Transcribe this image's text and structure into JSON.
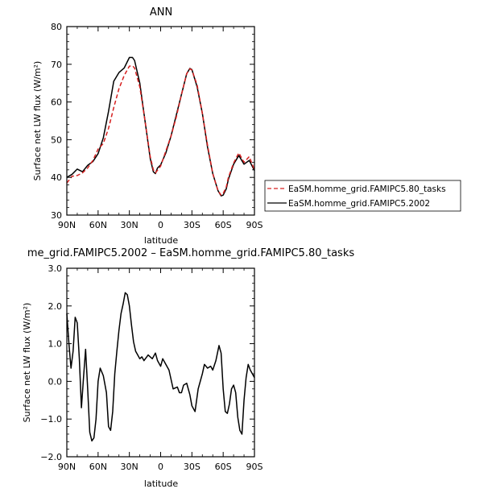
{
  "chart_data": [
    {
      "type": "line",
      "title": "ANN",
      "xlabel": "latitude",
      "ylabel": "Surface net LW flux (W/m²)",
      "ylim": [
        30,
        80
      ],
      "yticks": [
        "30",
        "40",
        "50",
        "60",
        "70",
        "80"
      ],
      "xticks": [
        "90N",
        "60N",
        "30N",
        "0",
        "30S",
        "60S",
        "90S"
      ],
      "xlim": [
        90,
        -90
      ],
      "grid": false,
      "legend_placement": "right",
      "x": [
        90,
        85,
        80,
        75,
        70,
        65,
        60,
        55,
        50,
        45,
        40,
        35,
        30,
        27,
        25,
        20,
        15,
        10,
        7,
        5,
        3,
        0,
        -5,
        -10,
        -15,
        -20,
        -25,
        -28,
        -30,
        -35,
        -40,
        -45,
        -50,
        -55,
        -58,
        -60,
        -63,
        -65,
        -70,
        -75,
        -80,
        -85,
        -90
      ],
      "series": [
        {
          "name": "EaSM.homme_grid.FAMIPC5.80_tasks",
          "color": "#d62020",
          "dash": "dashed",
          "values": [
            38.5,
            40.3,
            40.5,
            41.2,
            42.5,
            44.5,
            47.5,
            49.0,
            53.0,
            58.5,
            63.5,
            67.0,
            69.5,
            69.6,
            69.0,
            64.0,
            55.0,
            45.5,
            42.0,
            41.2,
            41.9,
            43.0,
            47.0,
            51.0,
            56.0,
            62.0,
            67.5,
            68.8,
            68.5,
            64.5,
            57.0,
            48.5,
            41.0,
            36.5,
            35.3,
            35.7,
            37.5,
            40.0,
            43.8,
            46.5,
            44.0,
            45.5,
            42.0
          ]
        },
        {
          "name": "EaSM.homme_grid.FAMIPC5.2002",
          "color": "#000000",
          "dash": "solid",
          "values": [
            40.0,
            40.8,
            42.2,
            41.5,
            43.2,
            44.2,
            46.3,
            50.5,
            57.5,
            65.5,
            67.8,
            69.0,
            71.8,
            71.8,
            71.0,
            65.0,
            55.0,
            45.0,
            41.5,
            41.0,
            42.5,
            43.3,
            46.5,
            51.0,
            56.5,
            62.0,
            67.5,
            68.9,
            68.6,
            64.0,
            57.0,
            48.0,
            41.0,
            36.5,
            35.1,
            35.3,
            37.0,
            39.5,
            43.5,
            45.8,
            43.5,
            44.5,
            41.8
          ]
        }
      ]
    },
    {
      "type": "line",
      "title": "me_grid.FAMIPC5.2002 – EaSM.homme_grid.FAMIPC5.80_tasks",
      "xlabel": "latitude",
      "ylabel": "Surface net LW flux (W/m²)",
      "ylim": [
        -2.0,
        3.0
      ],
      "yticks": [
        "−2.0",
        "−1.0",
        "0.0",
        "1.0",
        "2.0",
        "3.0"
      ],
      "xticks": [
        "90N",
        "60N",
        "30N",
        "0",
        "30S",
        "60S",
        "90S"
      ],
      "xlim": [
        90,
        -90
      ],
      "grid": false,
      "x": [
        90,
        88,
        86,
        84,
        82,
        80,
        78,
        76,
        74,
        72,
        70,
        68,
        66,
        64,
        62,
        60,
        58,
        55,
        52,
        50,
        48,
        46,
        44,
        42,
        40,
        38,
        36,
        34,
        32,
        30,
        28,
        26,
        24,
        22,
        20,
        18,
        16,
        12,
        8,
        5,
        3,
        0,
        -2,
        -5,
        -8,
        -12,
        -16,
        -18,
        -20,
        -22,
        -25,
        -28,
        -30,
        -33,
        -36,
        -40,
        -42,
        -45,
        -48,
        -50,
        -53,
        -56,
        -58,
        -60,
        -62,
        -64,
        -66,
        -68,
        -70,
        -72,
        -74,
        -76,
        -78,
        -80,
        -82,
        -84,
        -86,
        -88,
        -90
      ],
      "series": [
        {
          "name": "",
          "color": "#000000",
          "dash": "solid",
          "values": [
            1.8,
            1.0,
            0.35,
            0.8,
            1.7,
            1.55,
            0.6,
            -0.7,
            0.1,
            0.85,
            -0.2,
            -1.35,
            -1.58,
            -1.5,
            -1.0,
            0.0,
            0.35,
            0.15,
            -0.3,
            -1.2,
            -1.3,
            -0.8,
            0.2,
            0.8,
            1.35,
            1.8,
            2.05,
            2.35,
            2.3,
            2.0,
            1.5,
            1.05,
            0.8,
            0.7,
            0.6,
            0.65,
            0.55,
            0.7,
            0.6,
            0.75,
            0.55,
            0.4,
            0.6,
            0.45,
            0.3,
            -0.2,
            -0.15,
            -0.3,
            -0.3,
            -0.1,
            -0.05,
            -0.35,
            -0.65,
            -0.8,
            -0.2,
            0.2,
            0.45,
            0.35,
            0.4,
            0.3,
            0.55,
            0.95,
            0.75,
            -0.2,
            -0.8,
            -0.85,
            -0.6,
            -0.2,
            -0.1,
            -0.3,
            -0.95,
            -1.3,
            -1.4,
            -0.5,
            0.1,
            0.45,
            0.3,
            0.2,
            0.1
          ]
        }
      ]
    }
  ]
}
